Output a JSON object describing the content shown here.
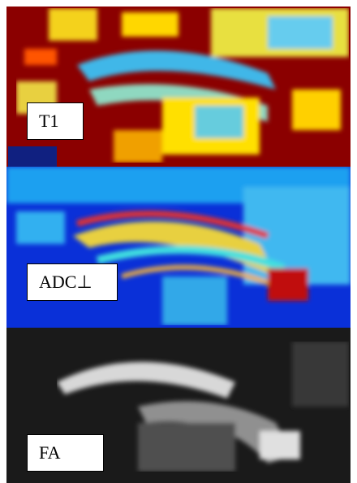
{
  "panels": [
    {
      "label": "T1"
    },
    {
      "label": "ADC⊥"
    },
    {
      "label": "FA"
    }
  ]
}
